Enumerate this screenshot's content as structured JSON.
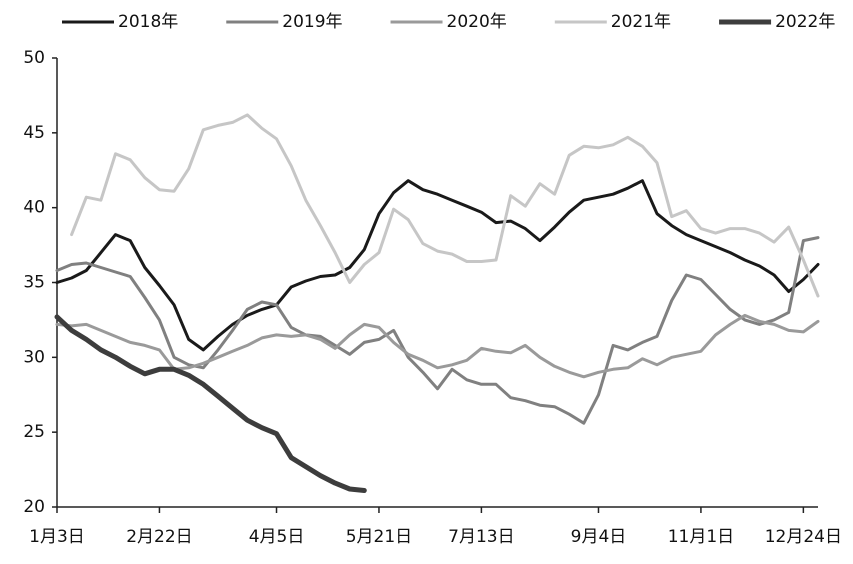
{
  "chart_data": {
    "type": "line",
    "categories": [
      "1月3日",
      null,
      null,
      null,
      null,
      null,
      null,
      "2月22日",
      null,
      null,
      null,
      null,
      null,
      null,
      null,
      "4月5日",
      null,
      null,
      null,
      null,
      null,
      null,
      "5月21日",
      null,
      null,
      null,
      null,
      null,
      null,
      "7月13日",
      null,
      null,
      null,
      null,
      null,
      null,
      null,
      "9月4日",
      null,
      null,
      null,
      null,
      null,
      null,
      "11月1日",
      null,
      null,
      null,
      null,
      null,
      null,
      "12月24日",
      null
    ],
    "ylim": [
      20,
      50
    ],
    "yticks": [
      20,
      25,
      30,
      35,
      40,
      45,
      50
    ],
    "legend": "top",
    "series": [
      {
        "name": "2018年",
        "color": "#1a1a1a",
        "values": [
          35,
          35.3,
          35.8,
          37,
          38.2,
          37.8,
          36,
          34.8,
          33.5,
          31.2,
          30.5,
          31.4,
          32.2,
          32.8,
          33.2,
          33.5,
          34.7,
          35.1,
          35.4,
          35.5,
          36,
          37.2,
          39.6,
          41,
          41.8,
          41.2,
          40.9,
          40.5,
          40.1,
          39.7,
          39,
          39.1,
          38.6,
          37.8,
          38.7,
          39.7,
          40.5,
          40.7,
          40.9,
          41.3,
          41.8,
          39.6,
          38.8,
          38.2,
          37.8,
          37.4,
          37,
          36.5,
          36.1,
          35.5,
          34.4,
          35.2,
          36.2
        ]
      },
      {
        "name": "2019年",
        "color": "#808080",
        "values": [
          35.8,
          36.2,
          36.3,
          36,
          35.7,
          35.4,
          34,
          32.5,
          30,
          29.5,
          29.3,
          30.5,
          31.8,
          33.2,
          33.7,
          33.5,
          32,
          31.5,
          31.4,
          30.8,
          30.2,
          31,
          31.2,
          31.8,
          30,
          29,
          27.9,
          29.2,
          28.5,
          28.2,
          28.2,
          27.3,
          27.1,
          26.8,
          26.7,
          26.2,
          25.6,
          27.5,
          30.8,
          30.5,
          31,
          31.4,
          33.8,
          35.5,
          35.2,
          34.2,
          33.2,
          32.5,
          32.2,
          32.5,
          33,
          37.8,
          38
        ]
      },
      {
        "name": "2020年",
        "color": "#9a9a9a",
        "values": [
          32.2,
          32.1,
          32.2,
          31.8,
          31.4,
          31,
          30.8,
          30.5,
          29.2,
          29.3,
          29.6,
          30,
          30.4,
          30.8,
          31.3,
          31.5,
          31.4,
          31.5,
          31.2,
          30.6,
          31.5,
          32.2,
          32,
          31,
          30.2,
          29.8,
          29.3,
          29.5,
          29.8,
          30.6,
          30.4,
          30.3,
          30.8,
          30,
          29.4,
          29,
          28.7,
          29,
          29.2,
          29.3,
          29.9,
          29.5,
          30,
          30.2,
          30.4,
          31.5,
          32.2,
          32.8,
          32.4,
          32.2,
          31.8,
          31.7,
          32.4
        ]
      },
      {
        "name": "2021年",
        "color": "#c6c6c6",
        "values": [
          null,
          38.2,
          40.7,
          40.5,
          43.6,
          43.2,
          42,
          41.2,
          41.1,
          42.6,
          45.2,
          45.5,
          45.7,
          46.2,
          45.3,
          44.6,
          42.8,
          40.5,
          38.8,
          37,
          35,
          36.2,
          37,
          39.9,
          39.2,
          37.6,
          37.1,
          36.9,
          36.4,
          36.4,
          36.5,
          40.8,
          40.1,
          41.6,
          40.9,
          43.5,
          44.1,
          44,
          44.2,
          44.7,
          44.1,
          43,
          39.4,
          39.8,
          38.6,
          38.3,
          38.6,
          38.6,
          38.3,
          37.7,
          38.7,
          36.5,
          34.1
        ]
      },
      {
        "name": "2022年",
        "color": "#3d3d3d",
        "width": 5,
        "values": [
          32.7,
          31.8,
          31.2,
          30.5,
          30,
          29.4,
          28.9,
          29.2,
          29.2,
          28.8,
          28.2,
          27.4,
          26.6,
          25.8,
          25.3,
          24.9,
          23.3,
          22.7,
          22.1,
          21.6,
          21.2,
          21.1,
          null,
          null,
          null,
          null,
          null,
          null,
          null,
          null,
          null,
          null,
          null,
          null,
          null,
          null,
          null,
          null,
          null,
          null,
          null,
          null,
          null,
          null,
          null,
          null,
          null,
          null,
          null,
          null,
          null,
          null,
          null
        ]
      }
    ]
  }
}
